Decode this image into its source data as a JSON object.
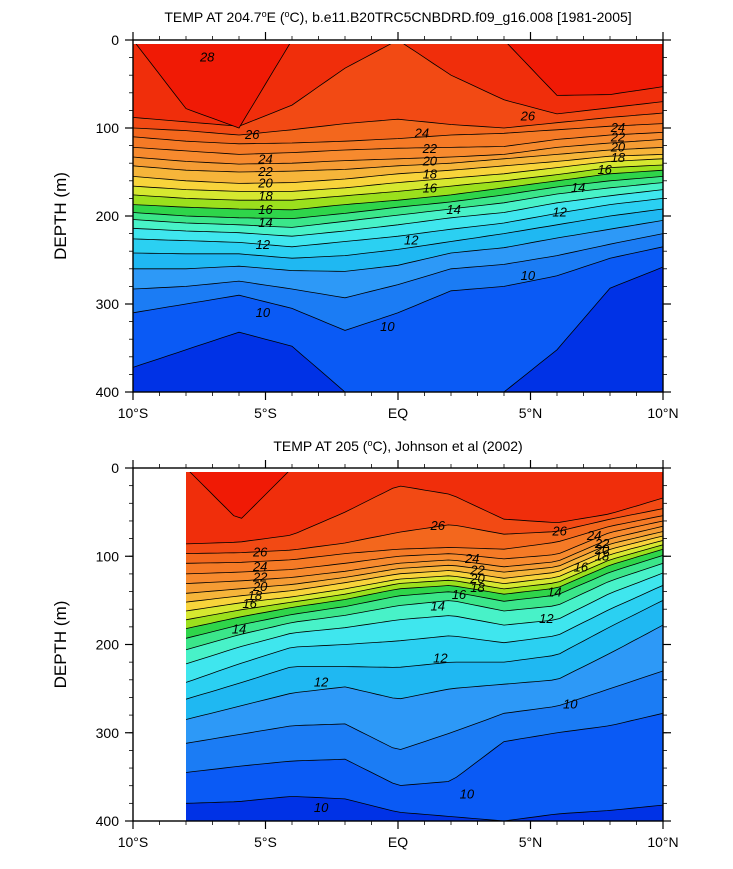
{
  "chart_data": [
    {
      "type": "contour",
      "title": "TEMP AT 204.7°E (°C), b.e11.B20TRC5CNBDRD.f09_g16.008 [1981-2005]",
      "title_parts": {
        "pre": "TEMP AT 204.7",
        "sup": "o",
        "post": "E (",
        "sup2": "o",
        "post2": "C), b.e11.B20TRC5CNBDRD.f09_g16.008 [1981-2005]"
      },
      "ylabel": "DEPTH (m)",
      "xlabel": "",
      "xlim": [
        -10,
        10
      ],
      "ylim": [
        400,
        0
      ],
      "x_ticks": [
        {
          "value": -10,
          "label": "10°S"
        },
        {
          "value": -5,
          "label": "5°S"
        },
        {
          "value": 0,
          "label": "EQ"
        },
        {
          "value": 5,
          "label": "5°N"
        },
        {
          "value": 10,
          "label": "10°N"
        }
      ],
      "y_ticks": [
        {
          "value": 0,
          "label": "0"
        },
        {
          "value": 100,
          "label": "100"
        },
        {
          "value": 200,
          "label": "200"
        },
        {
          "value": 300,
          "label": "300"
        },
        {
          "value": 400,
          "label": "400"
        }
      ],
      "data_x_range": [
        -10,
        10
      ],
      "levels": [
        9,
        10,
        11,
        12,
        13,
        14,
        15,
        16,
        17,
        18,
        19,
        20,
        21,
        22,
        23,
        24,
        25,
        26,
        27,
        28
      ],
      "isotherm_depths": {
        "x": [
          -10,
          -8,
          -6,
          -4,
          -2,
          0,
          2,
          4,
          6,
          8,
          10
        ],
        "28": [
          null,
          78,
          100,
          null,
          null,
          null,
          null,
          null,
          63,
          62,
          53
        ],
        "27": [
          88,
          93,
          98,
          74,
          32,
          null,
          40,
          68,
          84,
          77,
          70
        ],
        "26": [
          100,
          103,
          108,
          102,
          95,
          90,
          96,
          100,
          94,
          88,
          83
        ],
        "25": [
          110,
          115,
          118,
          117,
          115,
          112,
          108,
          106,
          102,
          98,
          95
        ],
        "24": [
          122,
          126,
          130,
          128,
          125,
          123,
          122,
          121,
          113,
          108,
          105
        ],
        "23": [
          133,
          138,
          141,
          140,
          137,
          135,
          133,
          130,
          122,
          117,
          113
        ],
        "22": [
          143,
          148,
          150,
          149,
          147,
          143,
          140,
          135,
          130,
          125,
          122
        ],
        "21": [
          155,
          160,
          163,
          162,
          158,
          152,
          148,
          143,
          138,
          132,
          130
        ],
        "20": [
          166,
          170,
          172,
          172,
          168,
          162,
          157,
          152,
          145,
          138,
          135
        ],
        "19": [
          176,
          180,
          182,
          182,
          177,
          172,
          166,
          160,
          153,
          145,
          142
        ],
        "18": [
          187,
          190,
          192,
          193,
          187,
          182,
          176,
          168,
          160,
          152,
          148
        ],
        "17": [
          196,
          200,
          202,
          203,
          197,
          190,
          184,
          176,
          167,
          160,
          155
        ],
        "16": [
          204,
          208,
          210,
          213,
          206,
          199,
          192,
          185,
          175,
          168,
          162
        ],
        "15": [
          214,
          217,
          219,
          223,
          217,
          210,
          202,
          196,
          185,
          177,
          170
        ],
        "14": [
          226,
          228,
          230,
          235,
          229,
          223,
          215,
          208,
          197,
          187,
          180
        ],
        "13": [
          242,
          243,
          243,
          248,
          245,
          238,
          229,
          220,
          210,
          200,
          192
        ],
        "12": [
          260,
          260,
          257,
          262,
          263,
          256,
          242,
          236,
          225,
          215,
          205
        ],
        "11": [
          283,
          280,
          274,
          283,
          293,
          278,
          260,
          255,
          245,
          232,
          220
        ],
        "10": [
          310,
          300,
          290,
          305,
          330,
          310,
          285,
          280,
          268,
          248,
          235
        ],
        "9": [
          372,
          352,
          332,
          348,
          400,
          400,
          400,
          400,
          352,
          282,
          258
        ]
      },
      "contour_labels": [
        {
          "text": "28",
          "x": -7.2,
          "y": 20
        },
        {
          "text": "26",
          "x": -5.5,
          "y": 108
        },
        {
          "text": "24",
          "x": 0.9,
          "y": 106
        },
        {
          "text": "26",
          "x": 4.9,
          "y": 87
        },
        {
          "text": "24",
          "x": 8.3,
          "y": 100
        },
        {
          "text": "22",
          "x": 8.3,
          "y": 111
        },
        {
          "text": "20",
          "x": 8.3,
          "y": 122
        },
        {
          "text": "18",
          "x": 8.3,
          "y": 134
        },
        {
          "text": "16",
          "x": 7.8,
          "y": 148
        },
        {
          "text": "14",
          "x": 6.8,
          "y": 168
        },
        {
          "text": "12",
          "x": 6.1,
          "y": 196
        },
        {
          "text": "24",
          "x": -5.0,
          "y": 136
        },
        {
          "text": "22",
          "x": -5.0,
          "y": 150
        },
        {
          "text": "20",
          "x": -5.0,
          "y": 163
        },
        {
          "text": "18",
          "x": -5.0,
          "y": 178
        },
        {
          "text": "16",
          "x": -5.0,
          "y": 193
        },
        {
          "text": "14",
          "x": -5.0,
          "y": 208
        },
        {
          "text": "12",
          "x": -5.1,
          "y": 233
        },
        {
          "text": "22",
          "x": 1.2,
          "y": 124
        },
        {
          "text": "20",
          "x": 1.2,
          "y": 138
        },
        {
          "text": "18",
          "x": 1.2,
          "y": 153
        },
        {
          "text": "16",
          "x": 1.2,
          "y": 169
        },
        {
          "text": "14",
          "x": 2.1,
          "y": 193
        },
        {
          "text": "12",
          "x": 0.5,
          "y": 228
        },
        {
          "text": "10",
          "x": -5.1,
          "y": 310
        },
        {
          "text": "10",
          "x": -0.4,
          "y": 326
        },
        {
          "text": "10",
          "x": 4.9,
          "y": 268
        }
      ]
    },
    {
      "type": "contour",
      "title": "TEMP AT 205 (°C), Johnson et al (2002)",
      "title_parts": {
        "pre": "TEMP AT 205 (",
        "sup": "o",
        "post": "C), Johnson et al (2002)"
      },
      "ylabel": "DEPTH (m)",
      "xlabel": "",
      "xlim": [
        -10,
        10
      ],
      "ylim": [
        400,
        0
      ],
      "x_ticks": [
        {
          "value": -10,
          "label": "10°S"
        },
        {
          "value": -5,
          "label": "5°S"
        },
        {
          "value": 0,
          "label": "EQ"
        },
        {
          "value": 5,
          "label": "5°N"
        },
        {
          "value": 10,
          "label": "10°N"
        }
      ],
      "y_ticks": [
        {
          "value": 0,
          "label": "0"
        },
        {
          "value": 100,
          "label": "100"
        },
        {
          "value": 200,
          "label": "200"
        },
        {
          "value": 300,
          "label": "300"
        },
        {
          "value": 400,
          "label": "400"
        }
      ],
      "data_x_range": [
        -8,
        10
      ],
      "levels": [
        9,
        10,
        11,
        12,
        13,
        14,
        15,
        16,
        17,
        18,
        19,
        20,
        21,
        22,
        23,
        24,
        25,
        26,
        27,
        28
      ],
      "isotherm_depths": {
        "x": [
          -8,
          -6,
          -4,
          -2,
          0,
          2,
          4,
          6,
          8,
          10
        ],
        "28": [
          null,
          60,
          null,
          null,
          null,
          null,
          null,
          null,
          null,
          null
        ],
        "27": [
          86,
          84,
          76,
          50,
          20,
          30,
          58,
          62,
          52,
          34
        ],
        "26": [
          97,
          96,
          93,
          85,
          73,
          64,
          75,
          72,
          58,
          46
        ],
        "25": [
          108,
          107,
          104,
          97,
          92,
          90,
          92,
          84,
          66,
          54
        ],
        "24": [
          120,
          118,
          115,
          108,
          100,
          97,
          103,
          98,
          73,
          60
        ],
        "23": [
          131,
          128,
          124,
          117,
          108,
          104,
          112,
          106,
          80,
          66
        ],
        "22": [
          142,
          137,
          132,
          124,
          114,
          110,
          118,
          112,
          86,
          72
        ],
        "21": [
          152,
          145,
          139,
          130,
          120,
          116,
          125,
          118,
          92,
          77
        ],
        "20": [
          162,
          153,
          146,
          137,
          126,
          122,
          131,
          124,
          98,
          82
        ],
        "19": [
          172,
          161,
          152,
          143,
          131,
          127,
          137,
          130,
          104,
          87
        ],
        "18": [
          182,
          169,
          158,
          149,
          137,
          133,
          143,
          136,
          110,
          92
        ],
        "17": [
          193,
          178,
          166,
          157,
          145,
          140,
          151,
          144,
          118,
          99
        ],
        "16": [
          206,
          189,
          175,
          167,
          156,
          150,
          162,
          156,
          128,
          108
        ],
        "15": [
          222,
          203,
          187,
          181,
          172,
          167,
          178,
          172,
          142,
          119
        ],
        "14": [
          243,
          222,
          203,
          200,
          196,
          190,
          198,
          190,
          160,
          133
        ],
        "13": [
          262,
          244,
          225,
          225,
          226,
          220,
          220,
          212,
          180,
          150
        ],
        "12": [
          285,
          270,
          255,
          248,
          262,
          250,
          245,
          240,
          210,
          178
        ],
        "11": [
          312,
          302,
          292,
          290,
          320,
          300,
          278,
          270,
          250,
          230
        ],
        "10": [
          345,
          338,
          332,
          330,
          360,
          355,
          310,
          300,
          292,
          278
        ],
        "9": [
          380,
          378,
          372,
          375,
          390,
          395,
          400,
          392,
          388,
          382
        ]
      },
      "contour_labels": [
        {
          "text": "26",
          "x": 1.5,
          "y": 66
        },
        {
          "text": "26",
          "x": 6.1,
          "y": 72
        },
        {
          "text": "24",
          "x": 7.4,
          "y": 77
        },
        {
          "text": "22",
          "x": 7.7,
          "y": 86
        },
        {
          "text": "20",
          "x": 7.7,
          "y": 93
        },
        {
          "text": "18",
          "x": 7.7,
          "y": 100
        },
        {
          "text": "16",
          "x": 6.9,
          "y": 113
        },
        {
          "text": "14",
          "x": 5.9,
          "y": 141
        },
        {
          "text": "12",
          "x": 5.6,
          "y": 171
        },
        {
          "text": "26",
          "x": -5.2,
          "y": 96
        },
        {
          "text": "24",
          "x": -5.2,
          "y": 112
        },
        {
          "text": "22",
          "x": -5.2,
          "y": 124
        },
        {
          "text": "20",
          "x": -5.2,
          "y": 135
        },
        {
          "text": "18",
          "x": -5.4,
          "y": 145
        },
        {
          "text": "16",
          "x": -5.6,
          "y": 154
        },
        {
          "text": "14",
          "x": -6.0,
          "y": 183
        },
        {
          "text": "24",
          "x": 2.8,
          "y": 103
        },
        {
          "text": "22",
          "x": 3.0,
          "y": 116
        },
        {
          "text": "20",
          "x": 3.0,
          "y": 126
        },
        {
          "text": "18",
          "x": 3.0,
          "y": 136
        },
        {
          "text": "16",
          "x": 2.3,
          "y": 144
        },
        {
          "text": "14",
          "x": 1.5,
          "y": 157
        },
        {
          "text": "12",
          "x": 1.6,
          "y": 216
        },
        {
          "text": "12",
          "x": -2.9,
          "y": 243
        },
        {
          "text": "10",
          "x": 6.5,
          "y": 268
        },
        {
          "text": "10",
          "x": 2.6,
          "y": 370
        },
        {
          "text": "10",
          "x": -2.9,
          "y": 385
        }
      ]
    }
  ]
}
